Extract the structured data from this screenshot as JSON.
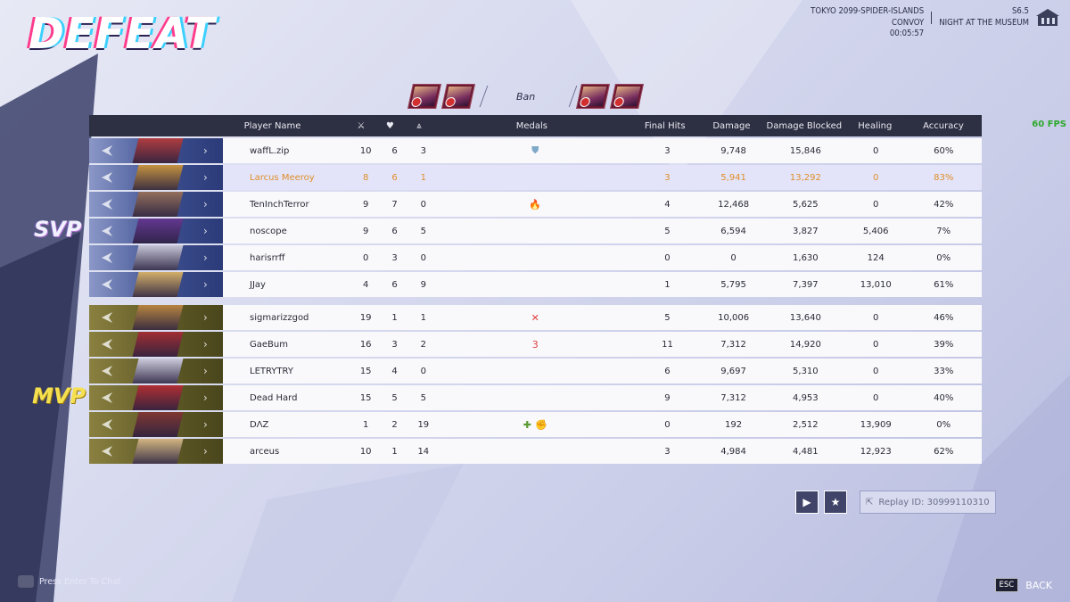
{
  "result_title": "DEFEAT",
  "match_info": {
    "map_line1": "TOKYO 2099-SPIDER-ISLANDS",
    "map_line2": "CONVOY",
    "time": "00:05:57",
    "season": "S6.5",
    "mode": "NIGHT AT THE MUSEUM"
  },
  "fps": "60 FPS",
  "ban_label": "Ban",
  "headers": {
    "name": "Player Name",
    "kills_icon": "crossed-swords-icon",
    "deaths_icon": "broken-heart-icon",
    "assists_icon": "assist-icon",
    "medals": "Medals",
    "final_hits": "Final Hits",
    "damage": "Damage",
    "damage_blocked": "Damage Blocked",
    "healing": "Healing",
    "accuracy": "Accuracy"
  },
  "team1_badge": "SVP",
  "team2_badge": "MVP",
  "team1": [
    {
      "name": "waffL.zip",
      "k": "10",
      "d": "6",
      "a": "3",
      "medals": [
        "shield-medal"
      ],
      "fh": "3",
      "dmg": "9,748",
      "blk": "15,846",
      "heal": "0",
      "acc": "60%"
    },
    {
      "name": "Larcus Meeroy",
      "k": "8",
      "d": "6",
      "a": "1",
      "medals": [],
      "fh": "3",
      "dmg": "5,941",
      "blk": "13,292",
      "heal": "0",
      "acc": "83%",
      "highlight": true
    },
    {
      "name": "TenInchTerror",
      "k": "9",
      "d": "7",
      "a": "0",
      "medals": [
        "flame-medal"
      ],
      "fh": "4",
      "dmg": "12,468",
      "blk": "5,625",
      "heal": "0",
      "acc": "42%"
    },
    {
      "name": "noscope",
      "k": "9",
      "d": "6",
      "a": "5",
      "medals": [],
      "fh": "5",
      "dmg": "6,594",
      "blk": "3,827",
      "heal": "5,406",
      "acc": "7%"
    },
    {
      "name": "harisrrff",
      "k": "0",
      "d": "3",
      "a": "0",
      "medals": [],
      "fh": "0",
      "dmg": "0",
      "blk": "1,630",
      "heal": "124",
      "acc": "0%"
    },
    {
      "name": "JJay",
      "k": "4",
      "d": "6",
      "a": "9",
      "medals": [],
      "fh": "1",
      "dmg": "5,795",
      "blk": "7,397",
      "heal": "13,010",
      "acc": "61%"
    }
  ],
  "team2": [
    {
      "name": "sigmarizzgod",
      "k": "19",
      "d": "1",
      "a": "1",
      "medals": [
        "crossed-swords-medal"
      ],
      "fh": "5",
      "dmg": "10,006",
      "blk": "13,640",
      "heal": "0",
      "acc": "46%"
    },
    {
      "name": "GaeBum",
      "k": "16",
      "d": "3",
      "a": "2",
      "medals": [
        "streak-medal"
      ],
      "fh": "11",
      "dmg": "7,312",
      "blk": "14,920",
      "heal": "0",
      "acc": "39%"
    },
    {
      "name": "LETRYTRY",
      "k": "15",
      "d": "4",
      "a": "0",
      "medals": [],
      "fh": "6",
      "dmg": "9,697",
      "blk": "5,310",
      "heal": "0",
      "acc": "33%"
    },
    {
      "name": "Dead Hard",
      "k": "15",
      "d": "5",
      "a": "5",
      "medals": [],
      "fh": "9",
      "dmg": "7,312",
      "blk": "4,953",
      "heal": "0",
      "acc": "40%"
    },
    {
      "name": "DΛZ",
      "k": "1",
      "d": "2",
      "a": "19",
      "medals": [
        "heal-medal",
        "fist-medal"
      ],
      "fh": "0",
      "dmg": "192",
      "blk": "2,512",
      "heal": "13,909",
      "acc": "0%"
    },
    {
      "name": "arceus",
      "k": "10",
      "d": "1",
      "a": "14",
      "medals": [],
      "fh": "3",
      "dmg": "4,984",
      "blk": "4,481",
      "heal": "12,923",
      "acc": "62%"
    }
  ],
  "replay_label": "Replay ID: 30999110310",
  "chat_hint": "Press Enter To Chat",
  "esc_key": "ESC",
  "back_label": "BACK",
  "colors": {
    "header_bg": "#2d2f42",
    "highlight_text": "#e08e2a",
    "ally_band": "#3d4f90",
    "enemy_band": "#5f5a26"
  }
}
